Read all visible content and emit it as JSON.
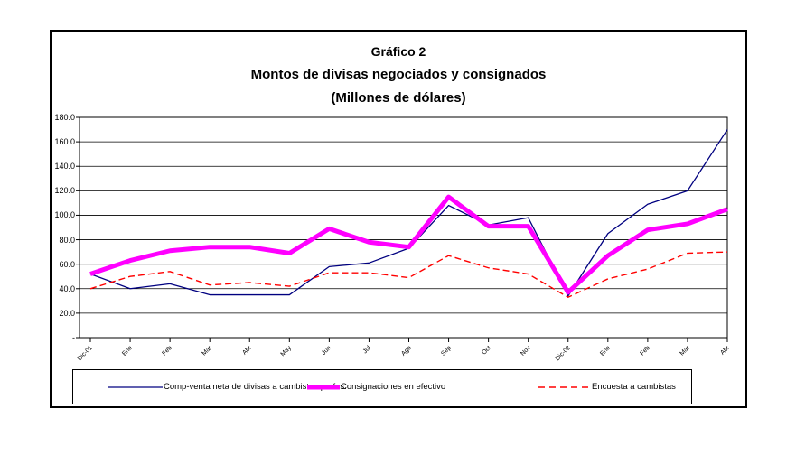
{
  "figure": {
    "title_line1": "Gráfico 2",
    "title_line2": "Montos de divisas negociados y consignados",
    "title_line3": "(Millones de dólares)"
  },
  "chart_data": {
    "type": "line",
    "title": "Gráfico 2 - Montos de divisas negociados y consignados (Millones de dólares)",
    "xlabel": "",
    "ylabel": "",
    "ylim": [
      0,
      180
    ],
    "ytick_step": 20,
    "ytick_labels": [
      "180.0",
      "160.0",
      "140.0",
      "120.0",
      "100.0",
      "80.0",
      "60.0",
      "40.0",
      "20.0",
      "-"
    ],
    "grid": true,
    "legend_position": "bottom",
    "categories": [
      "Dic-01",
      "Ene",
      "Feb",
      "Mar",
      "Abr",
      "May",
      "Jun",
      "Jul",
      "Ago",
      "Sep",
      "Oct",
      "Nov",
      "Dic-02",
      "Ene",
      "Feb",
      "Mar",
      "Abr"
    ],
    "series": [
      {
        "name": "Comp-venta neta de divisas a cambistas profes.",
        "color": "#000080",
        "style": "solid-thin",
        "values": [
          52,
          40,
          44,
          35,
          35,
          35,
          58,
          61,
          73,
          108,
          92,
          98,
          34,
          85,
          109,
          120,
          170
        ]
      },
      {
        "name": "Consignaciones en efectivo",
        "color": "#FF00FF",
        "style": "solid-thick",
        "values": [
          52,
          63,
          71,
          74,
          74,
          69,
          89,
          78,
          74,
          115,
          91,
          91,
          37,
          67,
          88,
          93,
          105
        ]
      },
      {
        "name": "Encuesta a cambistas",
        "color": "#FF0000",
        "style": "dashed",
        "values": [
          40,
          50,
          54,
          43,
          45,
          42,
          53,
          53,
          49,
          67,
          57,
          52,
          33,
          48,
          56,
          69,
          70
        ]
      }
    ],
    "axis_color": "#000000",
    "gridline_color": "#000000"
  }
}
